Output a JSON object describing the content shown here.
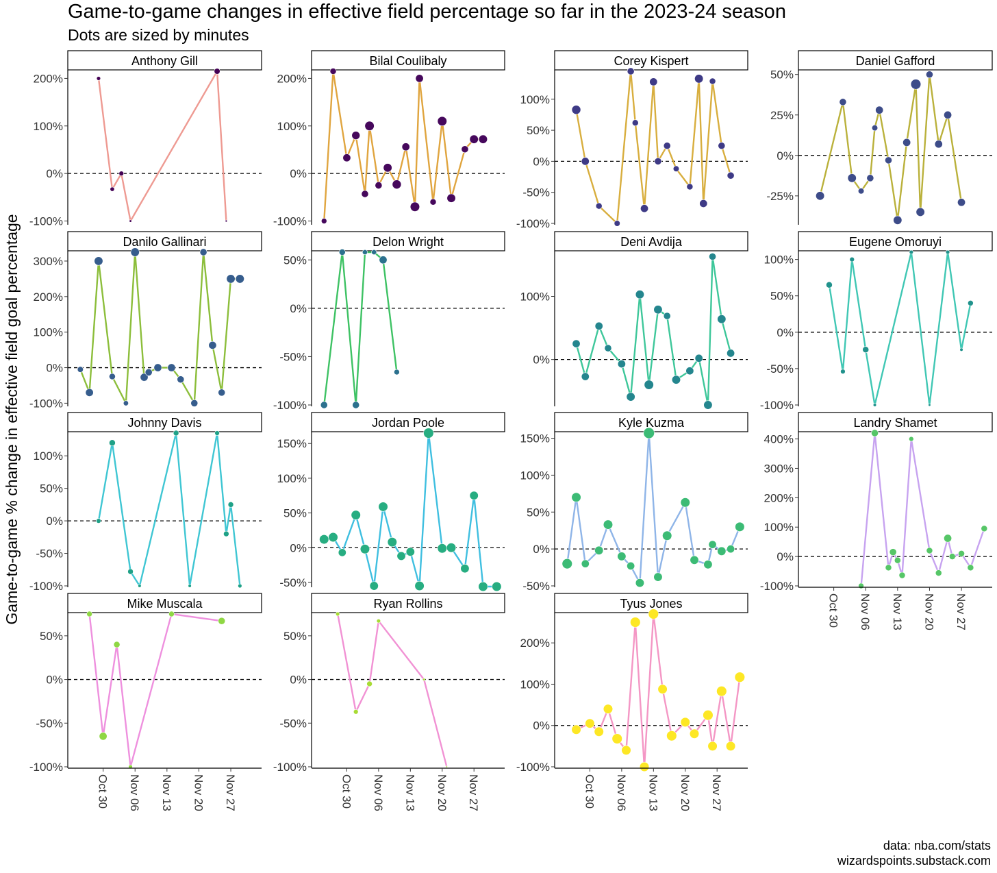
{
  "chart_data": {
    "type": "line",
    "title": "Game-to-game changes in effective field percentage so far in the 2023-24 season",
    "subtitle": "Dots are sized by minutes",
    "ylabel": "Game-to-game % change in effective field goal percentage",
    "xlabel": "",
    "x_ticks": [
      "Oct 30",
      "Nov 06",
      "Nov 13",
      "Nov 20",
      "Nov 27"
    ],
    "caption": [
      "data: nba.com/stats",
      "wizardspoints.substack.com"
    ],
    "reference_line": 0,
    "panels": [
      {
        "name": "Anthony Gill",
        "color": "#ee9a92",
        "ylim": [
          -105,
          215
        ],
        "yticks": [
          -100,
          0,
          100,
          200
        ],
        "tick_labels": [
          "-100%",
          "0%",
          "100%",
          "200%"
        ],
        "x": [
          "Oct 29",
          "Nov 01",
          "Nov 03",
          "Nov 05",
          "Nov 24",
          "Nov 26"
        ],
        "values": [
          200,
          -33,
          0,
          -100,
          215,
          -100
        ],
        "minutes": [
          12,
          13,
          14,
          8,
          17,
          7
        ]
      },
      {
        "name": "Bilal Coulibaly",
        "color": "#e0a53f",
        "ylim": [
          -105,
          215
        ],
        "yticks": [
          -100,
          0,
          100,
          200
        ],
        "tick_labels": [
          "-100%",
          "0%",
          "100%",
          "200%"
        ],
        "x": [
          "Oct 25",
          "Oct 27",
          "Oct 30",
          "Nov 01",
          "Nov 03",
          "Nov 04",
          "Nov 06",
          "Nov 08",
          "Nov 10",
          "Nov 12",
          "Nov 14",
          "Nov 15",
          "Nov 18",
          "Nov 20",
          "Nov 22",
          "Nov 25",
          "Nov 27",
          "Nov 29"
        ],
        "values": [
          -100,
          215,
          33,
          80,
          -43,
          100,
          -25,
          12,
          -23,
          56,
          -70,
          200,
          -60,
          110,
          -52,
          51,
          72,
          72
        ],
        "minutes": [
          16,
          18,
          22,
          23,
          20,
          26,
          20,
          24,
          25,
          22,
          26,
          22,
          18,
          26,
          24,
          20,
          24,
          24
        ]
      },
      {
        "name": "Corey Kispert",
        "color": "#d8ae3e",
        "ylim": [
          -100,
          145
        ],
        "yticks": [
          -100,
          -50,
          0,
          50,
          100
        ],
        "tick_labels": [
          "-100%",
          "-50%",
          "0%",
          "50%",
          "100%"
        ],
        "x": [
          "Oct 27",
          "Oct 29",
          "Nov 01",
          "Nov 05",
          "Nov 08",
          "Nov 09",
          "Nov 11",
          "Nov 13",
          "Nov 14",
          "Nov 16",
          "Nov 18",
          "Nov 21",
          "Nov 23",
          "Nov 24",
          "Nov 26",
          "Nov 28",
          "Nov 30"
        ],
        "values": [
          83,
          0,
          -72,
          -100,
          145,
          62,
          -76,
          128,
          0,
          25,
          -12,
          -41,
          133,
          -68,
          129,
          25,
          -23
        ],
        "minutes": [
          25,
          22,
          18,
          17,
          20,
          18,
          22,
          22,
          20,
          20,
          17,
          18,
          24,
          22,
          18,
          20,
          20
        ]
      },
      {
        "name": "Daniel Gafford",
        "color": "#bab13b",
        "ylim": [
          -42,
          52
        ],
        "yticks": [
          -25,
          0,
          25,
          50
        ],
        "tick_labels": [
          "-25%",
          "0%",
          "25%",
          "50%"
        ],
        "x": [
          "Oct 27",
          "Nov 01",
          "Nov 03",
          "Nov 05",
          "Nov 07",
          "Nov 08",
          "Nov 09",
          "Nov 11",
          "Nov 13",
          "Nov 15",
          "Nov 17",
          "Nov 18",
          "Nov 20",
          "Nov 22",
          "Nov 24",
          "Nov 27"
        ],
        "values": [
          -25,
          33,
          -14,
          -22,
          -14,
          17,
          28,
          -3,
          -40,
          8,
          44,
          -35,
          50,
          7,
          25,
          -29
        ],
        "minutes": [
          24,
          20,
          24,
          17,
          20,
          17,
          22,
          20,
          24,
          22,
          28,
          24,
          20,
          22,
          22,
          22
        ]
      },
      {
        "name": "Danilo Gallinari",
        "color": "#8cbe3b",
        "ylim": [
          -105,
          325
        ],
        "yticks": [
          -100,
          0,
          100,
          200,
          300
        ],
        "tick_labels": [
          "-100%",
          "0%",
          "100%",
          "200%",
          "300%"
        ],
        "x": [
          "Oct 25",
          "Oct 27",
          "Oct 29",
          "Nov 01",
          "Nov 04",
          "Nov 06",
          "Nov 08",
          "Nov 09",
          "Nov 11",
          "Nov 14",
          "Nov 16",
          "Nov 19",
          "Nov 21",
          "Nov 23",
          "Nov 25",
          "Nov 27",
          "Nov 29"
        ],
        "values": [
          -5,
          -70,
          300,
          -25,
          -100,
          325,
          -27,
          -13,
          0,
          0,
          -33,
          -100,
          325,
          63,
          -70,
          250,
          250
        ],
        "minutes": [
          17,
          22,
          24,
          18,
          15,
          24,
          22,
          20,
          22,
          22,
          20,
          20,
          20,
          22,
          20,
          24,
          24
        ]
      },
      {
        "name": "Delon Wright",
        "color": "#3ec264",
        "ylim": [
          -100,
          58
        ],
        "yticks": [
          -100,
          -50,
          0,
          50
        ],
        "tick_labels": [
          "-100%",
          "-50%",
          "0%",
          "50%"
        ],
        "x": [
          "Oct 25",
          "Oct 29",
          "Nov 01",
          "Nov 03",
          "Nov 05",
          "Nov 07",
          "Nov 10"
        ],
        "values": [
          -100,
          58,
          -100,
          58,
          58,
          50,
          -66
        ],
        "minutes": [
          20,
          18,
          20,
          15,
          15,
          22,
          16
        ]
      },
      {
        "name": "Deni Avdija",
        "color": "#3ec79a",
        "ylim": [
          -72,
          170
        ],
        "yticks": [
          0,
          100
        ],
        "tick_labels": [
          "0%",
          "100%"
        ],
        "x": [
          "Oct 27",
          "Oct 29",
          "Nov 01",
          "Nov 03",
          "Nov 06",
          "Nov 08",
          "Nov 10",
          "Nov 12",
          "Nov 14",
          "Nov 16",
          "Nov 18",
          "Nov 21",
          "Nov 23",
          "Nov 25",
          "Nov 26",
          "Nov 28",
          "Nov 30"
        ],
        "values": [
          25,
          -27,
          53,
          18,
          -7,
          -59,
          103,
          -40,
          79,
          69,
          -32,
          -18,
          2,
          -72,
          163,
          64,
          10
        ],
        "minutes": [
          22,
          22,
          22,
          20,
          22,
          24,
          24,
          26,
          24,
          20,
          24,
          22,
          22,
          24,
          20,
          24,
          22
        ]
      },
      {
        "name": "Eugene Omoruyi",
        "color": "#40c7b4",
        "ylim": [
          -100,
          110
        ],
        "yticks": [
          -100,
          -50,
          0,
          50,
          100
        ],
        "tick_labels": [
          "-100%",
          "-50%",
          "0%",
          "50%",
          "100%"
        ],
        "x": [
          "Oct 29",
          "Nov 01",
          "Nov 03",
          "Nov 06",
          "Nov 08",
          "Nov 16",
          "Nov 20",
          "Nov 24",
          "Nov 27",
          "Nov 29"
        ],
        "values": [
          65,
          -54,
          100,
          -24,
          -100,
          110,
          -100,
          110,
          -24,
          40
        ],
        "minutes": [
          18,
          14,
          14,
          18,
          10,
          12,
          8,
          12,
          10,
          16
        ]
      },
      {
        "name": "Johnny Davis",
        "color": "#3fc6d3",
        "ylim": [
          -100,
          135
        ],
        "yticks": [
          -100,
          -50,
          0,
          50,
          100
        ],
        "tick_labels": [
          "-100%",
          "-50%",
          "0%",
          "50%",
          "100%"
        ],
        "x": [
          "Oct 29",
          "Nov 01",
          "Nov 05",
          "Nov 07",
          "Nov 15",
          "Nov 18",
          "Nov 24",
          "Nov 26",
          "Nov 27",
          "Nov 29"
        ],
        "values": [
          0,
          120,
          -78,
          -100,
          135,
          -100,
          135,
          -20,
          25,
          -100
        ],
        "minutes": [
          14,
          18,
          16,
          10,
          16,
          10,
          14,
          16,
          16,
          12
        ]
      },
      {
        "name": "Jordan Poole",
        "color": "#3fbfe0",
        "ylim": [
          -55,
          165
        ],
        "yticks": [
          -50,
          0,
          50,
          100,
          150
        ],
        "tick_labels": [
          "-50%",
          "0%",
          "50%",
          "100%",
          "150%"
        ],
        "x": [
          "Oct 25",
          "Oct 27",
          "Oct 29",
          "Nov 01",
          "Nov 03",
          "Nov 05",
          "Nov 07",
          "Nov 09",
          "Nov 11",
          "Nov 13",
          "Nov 15",
          "Nov 17",
          "Nov 20",
          "Nov 22",
          "Nov 25",
          "Nov 27",
          "Nov 29",
          "Dec 01"
        ],
        "values": [
          12,
          15,
          -7,
          47,
          -2,
          -55,
          59,
          8,
          -12,
          -6,
          -55,
          165,
          -1,
          0,
          -30,
          75,
          -56,
          -56
        ],
        "minutes": [
          26,
          26,
          22,
          26,
          26,
          24,
          26,
          26,
          24,
          24,
          26,
          28,
          26,
          26,
          24,
          24,
          26,
          26
        ]
      },
      {
        "name": "Kyle Kuzma",
        "color": "#8fb5e8",
        "ylim": [
          -50,
          157
        ],
        "yticks": [
          -50,
          0,
          50,
          100,
          150
        ],
        "tick_labels": [
          "-50%",
          "0%",
          "50%",
          "100%",
          "150%"
        ],
        "x": [
          "Oct 25",
          "Oct 27",
          "Oct 29",
          "Nov 01",
          "Nov 03",
          "Nov 06",
          "Nov 08",
          "Nov 10",
          "Nov 12",
          "Nov 14",
          "Nov 16",
          "Nov 20",
          "Nov 22",
          "Nov 25",
          "Nov 26",
          "Nov 28",
          "Nov 30",
          "Dec 01"
        ],
        "values": [
          -20,
          70,
          -20,
          -2,
          33,
          -10,
          -23,
          -46,
          157,
          -38,
          18,
          63,
          -15,
          -21,
          6,
          -3,
          0,
          30
        ],
        "minutes": [
          28,
          26,
          22,
          24,
          26,
          24,
          22,
          24,
          30,
          24,
          26,
          26,
          24,
          24,
          22,
          24,
          22,
          26
        ]
      },
      {
        "name": "Landry Shamet",
        "color": "#c7a3f0",
        "ylim": [
          -100,
          420
        ],
        "yticks": [
          -100,
          0,
          100,
          200,
          300,
          400
        ],
        "tick_labels": [
          "-100%",
          "0%",
          "100%",
          "200%",
          "300%",
          "400%"
        ],
        "x": [
          "Nov 05",
          "Nov 08",
          "Nov 11",
          "Nov 12",
          "Nov 13",
          "Nov 14",
          "Nov 16",
          "Nov 20",
          "Nov 22",
          "Nov 24",
          "Nov 25",
          "Nov 27",
          "Nov 29",
          "Dec 01"
        ],
        "values": [
          -100,
          420,
          -38,
          15,
          -13,
          -64,
          400,
          20,
          -56,
          62,
          0,
          10,
          -38,
          95
        ],
        "minutes": [
          16,
          20,
          18,
          20,
          18,
          18,
          14,
          18,
          18,
          22,
          18,
          18,
          18,
          18
        ]
      },
      {
        "name": "Mike Muscala",
        "color": "#ee90de",
        "ylim": [
          -100,
          75
        ],
        "yticks": [
          -100,
          -50,
          0,
          50
        ],
        "tick_labels": [
          "-100%",
          "-50%",
          "0%",
          "50%"
        ],
        "x": [
          "Oct 27",
          "Oct 30",
          "Nov 02",
          "Nov 05",
          "Nov 14",
          "Nov 25"
        ],
        "values": [
          75,
          -65,
          40,
          -100,
          75,
          67
        ],
        "minutes": [
          16,
          22,
          18,
          12,
          16,
          20
        ]
      },
      {
        "name": "Ryan Rollins",
        "color": "#f192d4",
        "ylim": [
          -100,
          75
        ],
        "yticks": [
          -100,
          -50,
          0,
          50
        ],
        "tick_labels": [
          "-100%",
          "-50%",
          "0%",
          "50%"
        ],
        "x": [
          "Oct 28",
          "Nov 01",
          "Nov 04",
          "Nov 06",
          "Nov 16",
          "Nov 21"
        ],
        "values": [
          75,
          -37,
          -5,
          67,
          0,
          -100
        ],
        "minutes": [
          12,
          14,
          16,
          12,
          8,
          6
        ]
      },
      {
        "name": "Tyus Jones",
        "color": "#f497c5",
        "ylim": [
          -100,
          270
        ],
        "yticks": [
          -100,
          0,
          100,
          200
        ],
        "tick_labels": [
          "-100%",
          "0%",
          "100%",
          "200%"
        ],
        "x": [
          "Oct 27",
          "Oct 30",
          "Nov 01",
          "Nov 03",
          "Nov 05",
          "Nov 07",
          "Nov 09",
          "Nov 11",
          "Nov 13",
          "Nov 15",
          "Nov 17",
          "Nov 20",
          "Nov 22",
          "Nov 25",
          "Nov 26",
          "Nov 28",
          "Nov 30",
          "Dec 01"
        ],
        "values": [
          -10,
          5,
          -15,
          40,
          -32,
          -60,
          250,
          -100,
          270,
          88,
          -25,
          8,
          -20,
          25,
          -50,
          83,
          -50,
          117
        ],
        "minutes": [
          26,
          26,
          26,
          26,
          28,
          26,
          28,
          26,
          28,
          26,
          28,
          26,
          26,
          28,
          26,
          28,
          26,
          28
        ]
      }
    ]
  }
}
